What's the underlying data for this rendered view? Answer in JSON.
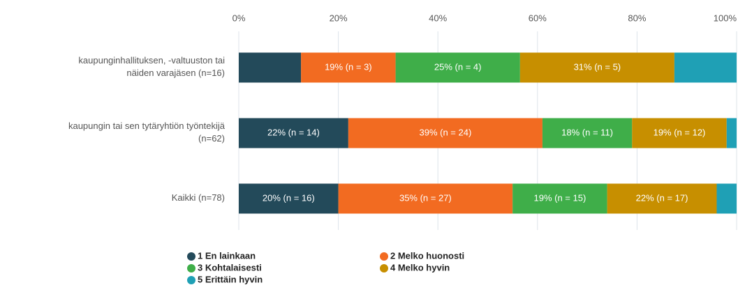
{
  "chart_data": {
    "type": "stacked_barh",
    "categories": [
      "kaupunginhallituksen, -valtuuston tai\nnäiden varajäsen (n=16)",
      "kaupungin tai sen tytäryhtiön työntekijä\n(n=62)",
      "Kaikki (n=78)"
    ],
    "series": [
      {
        "name": "1 En lainkaan",
        "color": "#234a5a",
        "values": [
          12.5,
          22,
          20
        ],
        "value_labels": [
          null,
          "22% (n = 14)",
          "20% (n = 16)"
        ]
      },
      {
        "name": "2 Melko huonosti",
        "color": "#f26b21",
        "values": [
          19,
          39,
          35
        ],
        "value_labels": [
          "19% (n = 3)",
          "39% (n = 24)",
          "35% (n = 27)"
        ]
      },
      {
        "name": "3 Kohtalaisesti",
        "color": "#3fae49",
        "values": [
          25,
          18,
          19
        ],
        "value_labels": [
          "25% (n = 4)",
          "18% (n = 11)",
          "19% (n = 15)"
        ]
      },
      {
        "name": "4 Melko hyvin",
        "color": "#c78f00",
        "values": [
          31,
          19,
          22
        ],
        "value_labels": [
          "31% (n = 5)",
          "19% (n = 12)",
          "22% (n = 17)"
        ]
      },
      {
        "name": "5 Erittäin hyvin",
        "color": "#1fa0b5",
        "values": [
          12.5,
          2,
          4
        ],
        "value_labels": [
          null,
          null,
          null
        ]
      }
    ],
    "xlim": [
      0,
      100
    ],
    "xticks": [
      {
        "value": 0,
        "label": "0%"
      },
      {
        "value": 20,
        "label": "20%"
      },
      {
        "value": 40,
        "label": "40%"
      },
      {
        "value": 60,
        "label": "60%"
      },
      {
        "value": 80,
        "label": "80%"
      },
      {
        "value": 100,
        "label": "100%"
      }
    ],
    "grid": true
  }
}
